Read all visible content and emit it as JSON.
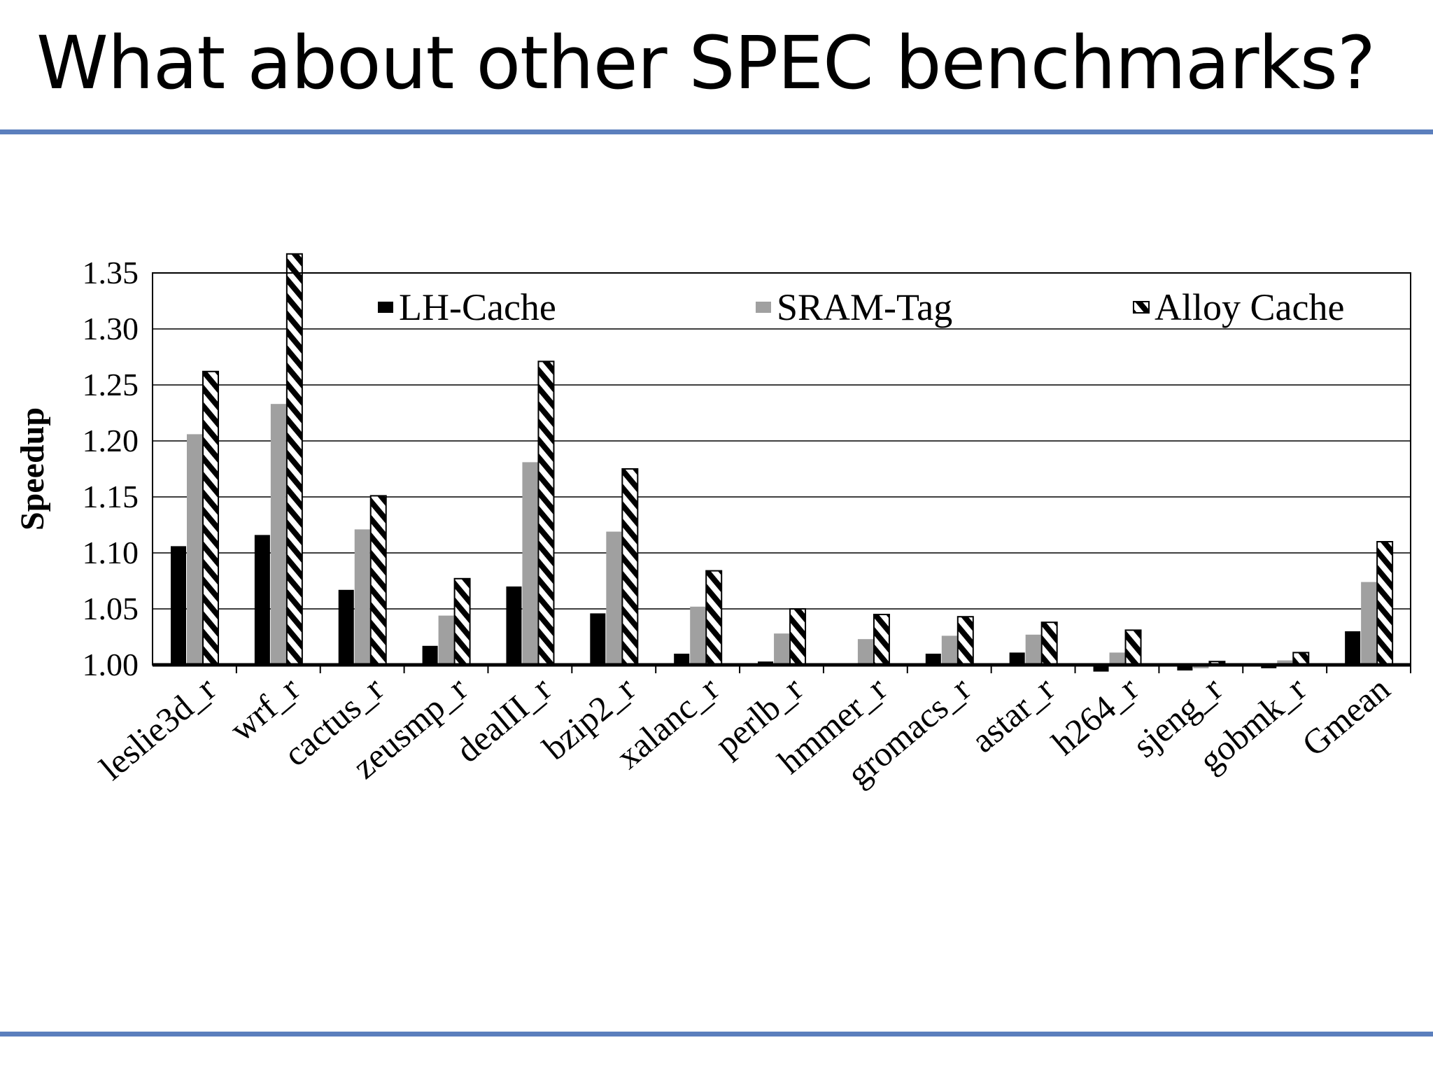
{
  "slide": {
    "title": "What about other SPEC benchmarks?"
  },
  "colors": {
    "rule": "#5b7fbd",
    "lh_cache": "#000000",
    "sram_tag": "#a0a0a0",
    "alloy_cache_hatch": "#000000"
  },
  "chart_data": {
    "type": "bar",
    "title": "",
    "xlabel": "",
    "ylabel": "Speedup",
    "ylim": [
      1.0,
      1.35
    ],
    "yticks": [
      "1.00",
      "1.05",
      "1.10",
      "1.15",
      "1.20",
      "1.25",
      "1.30",
      "1.35"
    ],
    "grid": "horizontal",
    "legend_position": "top",
    "categories": [
      "leslie3d_r",
      "wrf_r",
      "cactus_r",
      "zeusmp_r",
      "dealII_r",
      "bzip2_r",
      "xalanc_r",
      "perlb_r",
      "hmmer_r",
      "gromacs_r",
      "astar_r",
      "h264_r",
      "sjeng_r",
      "gobmk_r",
      "Gmean"
    ],
    "series": [
      {
        "name": "LH-Cache",
        "pattern": "solid-black",
        "values": [
          1.106,
          1.116,
          1.067,
          1.017,
          1.07,
          1.046,
          1.01,
          1.003,
          1.0,
          1.01,
          1.011,
          0.994,
          0.995,
          0.997,
          1.03
        ]
      },
      {
        "name": "SRAM-Tag",
        "pattern": "solid-gray",
        "values": [
          1.206,
          1.233,
          1.121,
          1.044,
          1.181,
          1.119,
          1.052,
          1.028,
          1.023,
          1.026,
          1.027,
          1.011,
          0.997,
          1.004,
          1.074
        ]
      },
      {
        "name": "Alloy Cache",
        "pattern": "hatched",
        "values": [
          1.262,
          1.367,
          1.151,
          1.077,
          1.271,
          1.175,
          1.084,
          1.05,
          1.045,
          1.043,
          1.038,
          1.031,
          1.003,
          1.011,
          1.11
        ]
      }
    ]
  }
}
